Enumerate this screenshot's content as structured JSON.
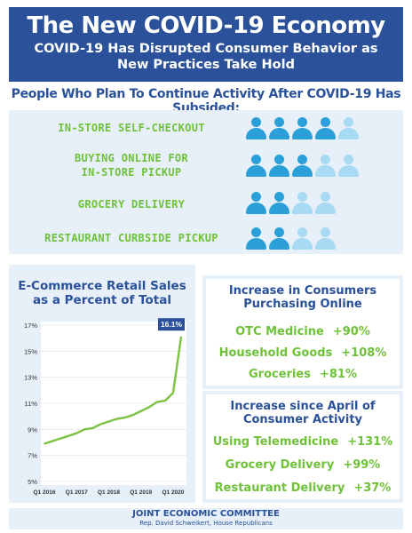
{
  "header": {
    "title": "The New COVID-19 Economy",
    "subtitle": "COVID-19 Has Disrupted Consumer Behavior as New Practices Take Hold"
  },
  "activities": {
    "heading": "People Who Plan To Continue Activity After COVID-19 Has Subsided:",
    "items": [
      {
        "label": "IN-STORE SELF-CHECKOUT",
        "level": 4,
        "out_of": 5
      },
      {
        "label": "BUYING ONLINE FOR IN-STORE PICKUP",
        "level": 3.5,
        "out_of": 5
      },
      {
        "label": "GROCERY DELIVERY",
        "level": 2,
        "out_of": 4
      },
      {
        "label": "RESTAURANT CURBSIDE PICKUP",
        "level": 2,
        "out_of": 4
      }
    ],
    "colors": {
      "filled": "#2a9fd8",
      "empty": "#a9daf3"
    }
  },
  "chart_data": {
    "type": "line",
    "title": "E-Commerce Retail Sales as a Percent of Total",
    "x_tick_labels": [
      "Q1 2016",
      "Q1 2017",
      "Q1 2018",
      "Q1 2019",
      "Q1 2020"
    ],
    "x": [
      "Q1 2016",
      "Q2 2016",
      "Q3 2016",
      "Q4 2016",
      "Q1 2017",
      "Q2 2017",
      "Q3 2017",
      "Q4 2017",
      "Q1 2018",
      "Q2 2018",
      "Q3 2018",
      "Q4 2018",
      "Q1 2019",
      "Q2 2019",
      "Q3 2019",
      "Q4 2019",
      "Q1 2020",
      "Q2 2020"
    ],
    "values": [
      7.9,
      8.1,
      8.3,
      8.5,
      8.7,
      9.0,
      9.1,
      9.4,
      9.6,
      9.8,
      9.9,
      10.1,
      10.4,
      10.7,
      11.1,
      11.2,
      11.8,
      16.1
    ],
    "ylim": [
      5,
      17
    ],
    "y_ticks": [
      "5%",
      "7%",
      "9%",
      "11%",
      "13%",
      "15%",
      "17%"
    ],
    "annotation": "16.1%",
    "line_color": "#7cc242"
  },
  "online_increase": {
    "title": "Increase in Consumers Purchasing Online",
    "items": [
      {
        "label": "OTC Medicine",
        "value": "+90%"
      },
      {
        "label": "Household Goods",
        "value": "+108%"
      },
      {
        "label": "Groceries",
        "value": "+81%"
      }
    ]
  },
  "april_increase": {
    "title": "Increase since April of Consumer Activity",
    "items": [
      {
        "label": "Using Telemedicine",
        "value": "+131%"
      },
      {
        "label": "Grocery Delivery",
        "value": "+99%"
      },
      {
        "label": "Restaurant Delivery",
        "value": "+37%"
      }
    ]
  },
  "footer": {
    "org": "JOINT ECONOMIC COMMITTEE",
    "sponsor": "Rep. David Schweikert, House Republicans"
  }
}
